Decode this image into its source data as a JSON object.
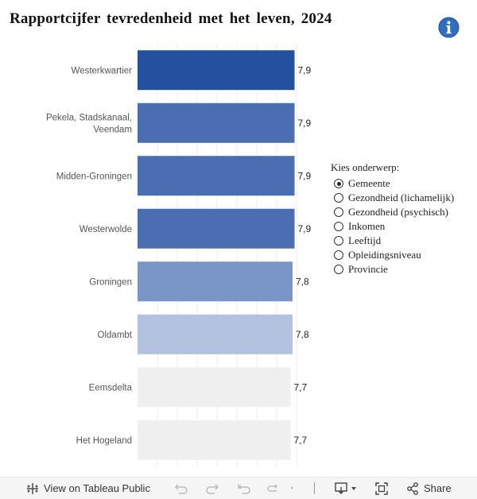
{
  "title": "Rapportcijfer tevredenheid met het leven, 2024",
  "chart_data": {
    "type": "bar",
    "orientation": "horizontal",
    "title": "Rapportcijfer tevredenheid met het leven, 2024",
    "xlim": [
      0,
      8
    ],
    "grid": true,
    "categories": [
      [
        "Westerkwartier"
      ],
      [
        "Pekela, Stadskanaal,",
        "Veendam"
      ],
      [
        "Midden-Groningen"
      ],
      [
        "Westerwolde"
      ],
      [
        "Groningen"
      ],
      [
        "Oldambt"
      ],
      [
        "Eemsdelta"
      ],
      [
        "Het Hogeland"
      ]
    ],
    "values": [
      7.9,
      7.9,
      7.9,
      7.9,
      7.8,
      7.8,
      7.7,
      7.7
    ],
    "value_labels": [
      "7,9",
      "7,9",
      "7,9",
      "7,9",
      "7,8",
      "7,8",
      "7,7",
      "7,7"
    ],
    "colors": [
      "#23509f",
      "#4b6db2",
      "#4b6db2",
      "#4b6db2",
      "#7a95c8",
      "#b3c2df",
      "#efefef",
      "#efefef"
    ]
  },
  "filter": {
    "title": "Kies onderwerp:",
    "selected": 0,
    "options": [
      "Gemeente",
      "Gezondheid (lichamelijk)",
      "Gezondheid (psychisch)",
      "Inkomen",
      "Leeftijd",
      "Opleidingsniveau",
      "Provincie"
    ]
  },
  "toolbar": {
    "view_label": "View on Tableau Public",
    "share_label": "Share"
  }
}
